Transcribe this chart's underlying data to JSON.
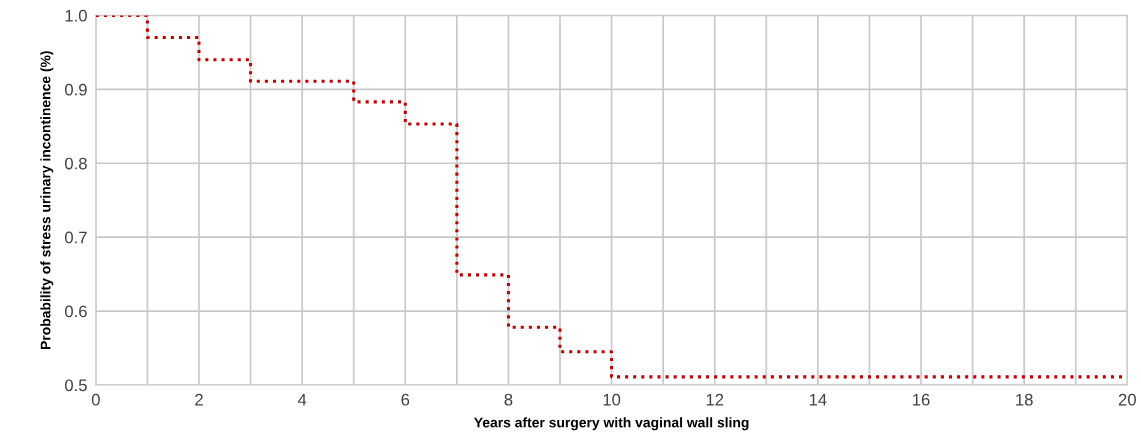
{
  "chart_data": {
    "type": "step",
    "xlabel": "Years after surgery with vaginal wall sling",
    "ylabel": "Probability of stress urinary incontinence (%)",
    "series": [
      {
        "color": "#c00000",
        "x": [
          0,
          1,
          2,
          3,
          5,
          6,
          7,
          8,
          9,
          10,
          20
        ],
        "values": [
          1.0,
          0.97,
          0.94,
          0.911,
          0.883,
          0.853,
          0.649,
          0.578,
          0.545,
          0.511,
          0.511
        ]
      }
    ],
    "xlim": [
      0,
      20
    ],
    "ylim": [
      0.5,
      1.0
    ],
    "xticks": [
      0,
      {
        "value": 1,
        "label": null
      },
      2,
      {
        "value": 3,
        "label": null
      },
      4,
      {
        "value": 5,
        "label": null
      },
      6,
      {
        "value": 7,
        "label": null
      },
      8,
      {
        "value": 9,
        "label": null
      },
      10,
      {
        "value": 11,
        "label": null
      },
      12,
      {
        "value": 13,
        "label": null
      },
      14,
      {
        "value": 15,
        "label": null
      },
      16,
      {
        "value": 17,
        "label": null
      },
      18,
      {
        "value": 19,
        "label": null
      },
      20
    ],
    "yticks": [
      0.5,
      0.6,
      0.7,
      0.8,
      0.9,
      {
        "value": 1.0,
        "label": "1.0"
      }
    ],
    "grid": true,
    "line_style": "dotted",
    "marker": "none"
  }
}
